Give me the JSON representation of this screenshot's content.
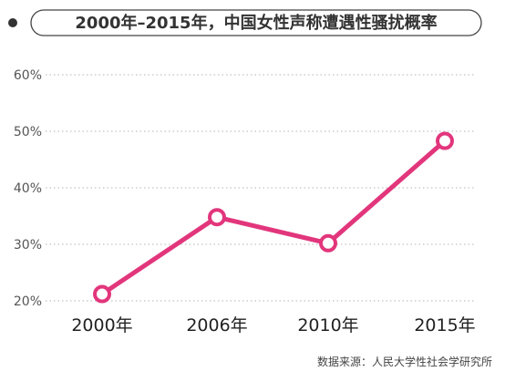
{
  "chart_data": {
    "type": "line",
    "title": "2000年–2015年，中国女性声称遭遇性骚扰概率",
    "source": "数据来源：人民大学性社会学研究所",
    "categories": [
      "2000年",
      "2006年",
      "2010年",
      "2015年"
    ],
    "series": [
      {
        "values": [
          21.2,
          34.8,
          30.2,
          48.3
        ],
        "color": "#e2367c"
      }
    ],
    "yticks": [
      "20%",
      "30%",
      "40%",
      "50%",
      "60%"
    ],
    "ylim": [
      20,
      60
    ],
    "grid": true,
    "grid_style": "dotted",
    "legend": "none",
    "marker_fill": "#ffffff",
    "bullet_color": "#333333"
  }
}
